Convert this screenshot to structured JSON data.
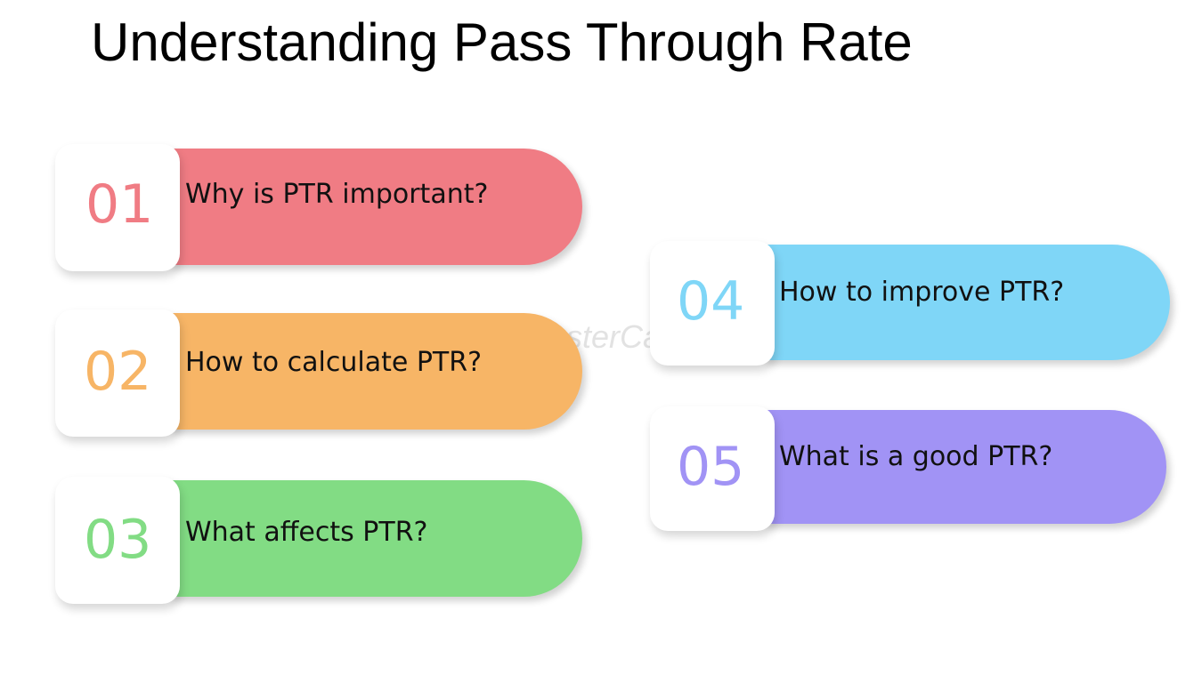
{
  "title": "Understanding Pass Through Rate",
  "watermark": "FasterCapital",
  "items": [
    {
      "number": "01",
      "label": "Why is PTR important?",
      "color": "#f07c84"
    },
    {
      "number": "02",
      "label": "How to calculate PTR?",
      "color": "#f7b566"
    },
    {
      "number": "03",
      "label": "What affects PTR?",
      "color": "#82dc84"
    },
    {
      "number": "04",
      "label": "How to improve PTR?",
      "color": "#7fd6f7"
    },
    {
      "number": "05",
      "label": "What is a good PTR?",
      "color": "#a193f5"
    }
  ]
}
